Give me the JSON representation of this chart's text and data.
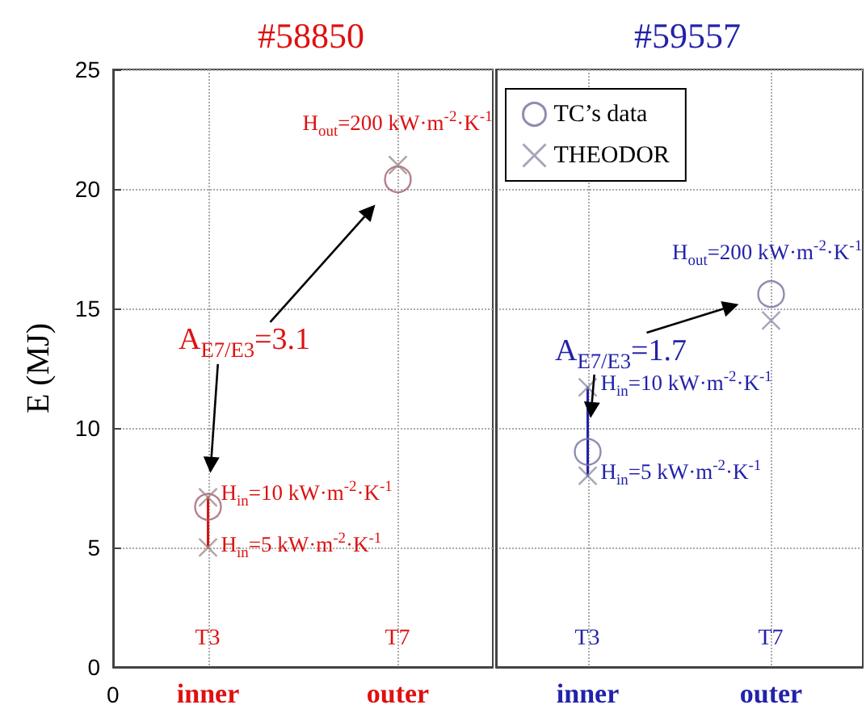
{
  "chart_data": [
    {
      "type": "scatter",
      "title": "#58850",
      "ylabel": "E (MJ)",
      "categories": [
        "inner",
        "outer"
      ],
      "ylim": [
        0,
        25
      ],
      "yticks": [
        0,
        5,
        10,
        15,
        20,
        25
      ],
      "grid": true,
      "legend": false,
      "series": [
        {
          "type": "line",
          "color": "#dd1111",
          "x": [
            "inner",
            "inner"
          ],
          "values": [
            5,
            7.1
          ],
          "marker": "none",
          "line_style": "solid"
        },
        {
          "color": "#a06070",
          "x": [
            "inner",
            "outer"
          ],
          "values": [
            6.7,
            20.4
          ],
          "marker": "circle"
        },
        {
          "color": "#a08888",
          "x": [
            "inner",
            "inner",
            "outer"
          ],
          "values": [
            5,
            7.1,
            21
          ],
          "marker": "cross"
        }
      ],
      "annotations": [
        "T3",
        "T7",
        "A$_{E7/E3}$=3.1",
        "0",
        {
          "text": "H$_{out}$=200 kW·m$^{-2}$·K$^{-1}$",
          "x": "outer",
          "y": 21
        },
        {
          "text": "H$_{in}$=10 kW·m$^{-2}$·K$^{-1}$",
          "x": "inner",
          "y": 7.1
        },
        {
          "text": "H$_{in}$=5 kW·m$^{-2}$·K$^{-1}$",
          "x": "inner",
          "y": 5
        }
      ]
    },
    {
      "type": "scatter",
      "title": "#59557",
      "categories": [
        "inner",
        "outer"
      ],
      "ylim": [
        0,
        25
      ],
      "yticks": [
        0,
        5,
        10,
        15,
        20,
        25
      ],
      "grid": true,
      "legend": "top left",
      "tick_labels": "x",
      "series": [
        {
          "type": "line",
          "color": "#2222aa",
          "x": [
            "inner",
            "inner"
          ],
          "values": [
            8,
            11.7
          ],
          "marker": "none",
          "line_style": "solid"
        },
        {
          "name": "TC’s data",
          "color": "#7070a0",
          "x": [
            "inner",
            "outer"
          ],
          "values": [
            9,
            15.6
          ],
          "marker": "circle"
        },
        {
          "name": "THEODOR",
          "color": "#9090a8",
          "x": [
            "inner",
            "inner",
            "outer"
          ],
          "values": [
            8,
            11.7,
            14.5
          ],
          "marker": "cross"
        }
      ],
      "annotations": [
        "T3",
        "T7",
        "A$_{E7/E3}$=1.7",
        {
          "text": "H$_{out}$=200 kW·m$^{-2}$·K$^{-1}$",
          "x": "outer",
          "y": 15.6
        },
        {
          "text": "H$_{in}$=10 kW·m$^{-2}$·K$^{-1}$",
          "x": "inner",
          "y": 11.7
        },
        {
          "text": "H$_{in}$=5 kW·m$^{-2}$·K$^{-1}$",
          "x": "inner",
          "y": 8
        }
      ]
    }
  ]
}
